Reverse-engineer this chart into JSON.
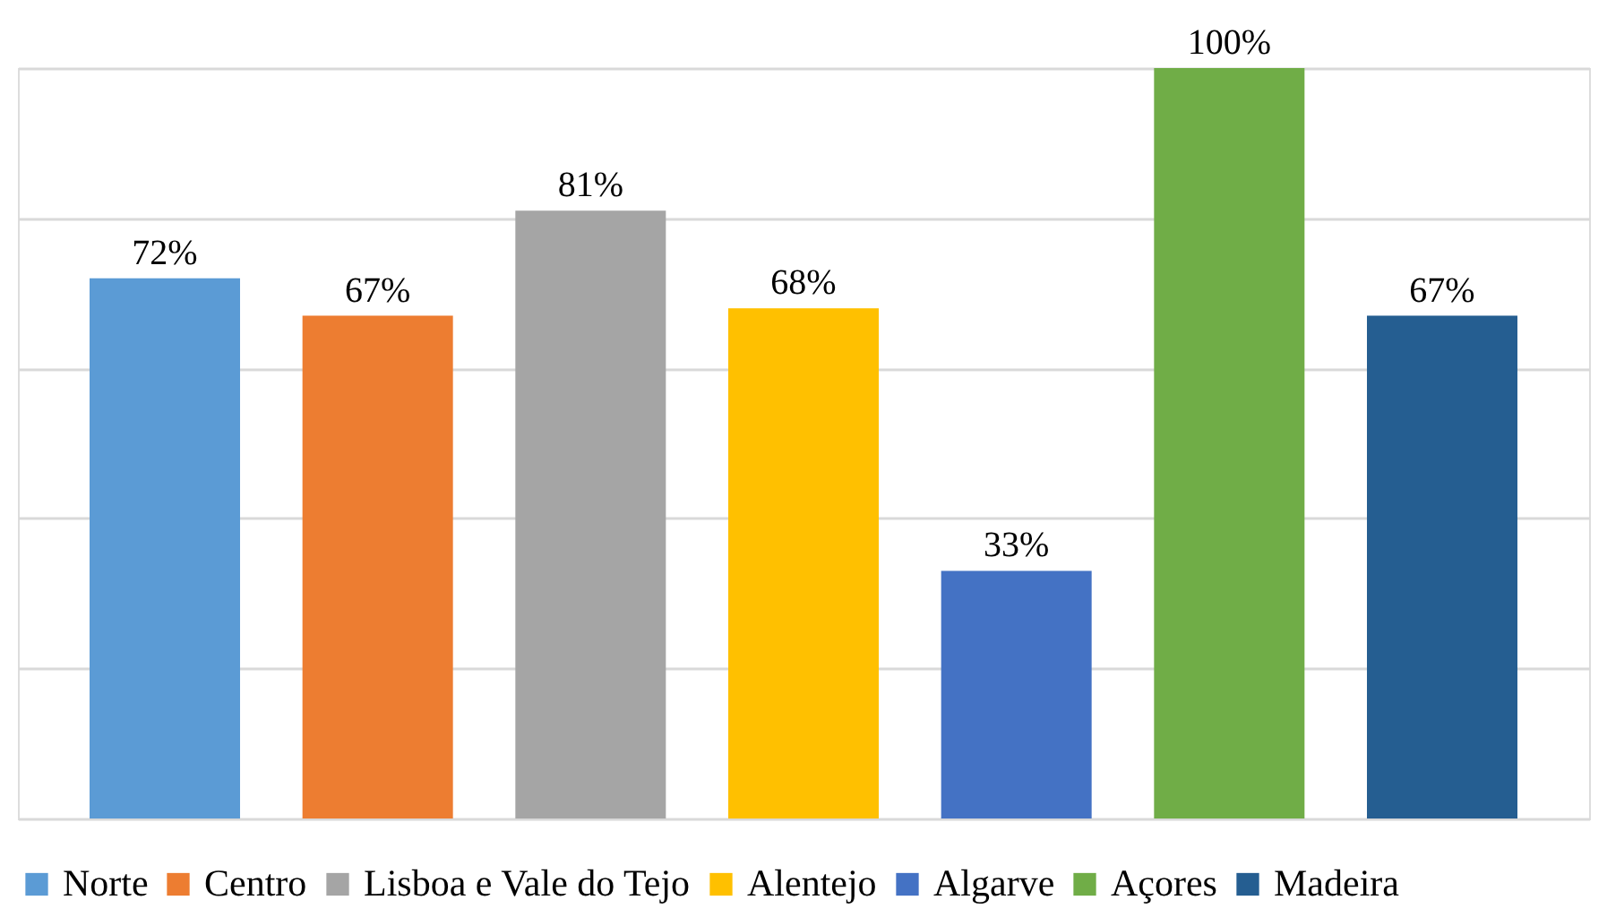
{
  "chart_data": {
    "type": "bar",
    "categories": [
      null,
      null,
      null,
      null,
      null,
      null,
      null
    ],
    "series": [
      {
        "name": "Norte",
        "color": "#5b9bd5",
        "values": [
          72,
          null,
          null,
          null,
          null,
          null,
          null
        ],
        "value_labels": [
          "72%",
          null,
          null,
          null,
          null,
          null,
          null
        ]
      },
      {
        "name": "Centro",
        "color": "#ed7d31",
        "values": [
          null,
          67,
          null,
          null,
          null,
          null,
          null
        ],
        "value_labels": [
          null,
          "67%",
          null,
          null,
          null,
          null,
          null
        ]
      },
      {
        "name": "Lisboa e Vale do Tejo",
        "color": "#a5a5a5",
        "values": [
          null,
          null,
          81,
          null,
          null,
          null,
          null
        ],
        "value_labels": [
          null,
          null,
          "81%",
          null,
          null,
          null,
          null
        ]
      },
      {
        "name": "Alentejo",
        "color": "#ffc000",
        "values": [
          null,
          null,
          null,
          68,
          null,
          null,
          null
        ],
        "value_labels": [
          null,
          null,
          null,
          "68%",
          null,
          null,
          null
        ]
      },
      {
        "name": "Algarve",
        "color": "#4472c4",
        "values": [
          null,
          null,
          null,
          null,
          33,
          null,
          null
        ],
        "value_labels": [
          null,
          null,
          null,
          null,
          "33%",
          null,
          null
        ]
      },
      {
        "name": "Açores",
        "color": "#70ad47",
        "values": [
          null,
          null,
          null,
          null,
          null,
          100,
          null
        ],
        "value_labels": [
          null,
          null,
          null,
          null,
          null,
          "100%",
          null
        ]
      },
      {
        "name": "Madeira",
        "color": "#255e91",
        "values": [
          null,
          null,
          null,
          null,
          null,
          null,
          67
        ],
        "value_labels": [
          null,
          null,
          null,
          null,
          null,
          null,
          "67%"
        ]
      }
    ],
    "ylim": [
      0,
      100
    ],
    "yticks": [
      {
        "value": 0,
        "label": null
      },
      {
        "value": 20,
        "label": null
      },
      {
        "value": 40,
        "label": null
      },
      {
        "value": 60,
        "label": null
      },
      {
        "value": 80,
        "label": null
      },
      {
        "value": 100,
        "label": null
      }
    ],
    "grid": "y",
    "legend": "bottom",
    "tick_labels": false,
    "stacked": true
  }
}
